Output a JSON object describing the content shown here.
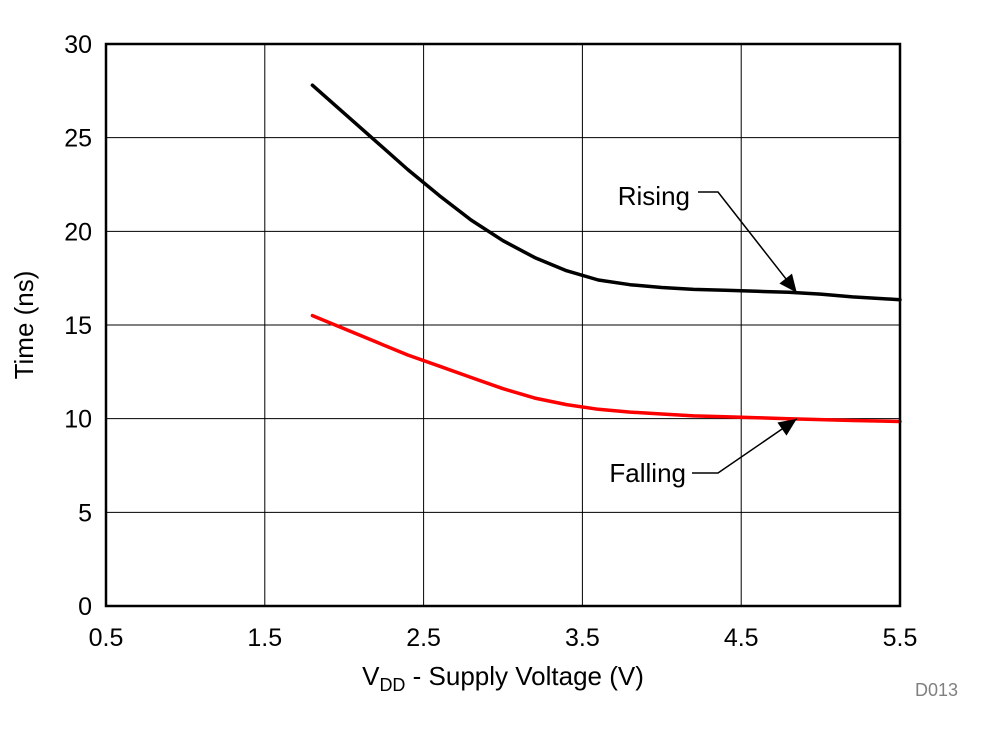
{
  "chart_data": {
    "type": "line",
    "title": "",
    "xlabel_main": "V",
    "xlabel_sub": "DD",
    "xlabel_rest": " - Supply Voltage (V)",
    "ylabel": "Time (ns)",
    "xlim": [
      0.5,
      5.5
    ],
    "ylim": [
      0,
      30
    ],
    "xticks": [
      "0.5",
      "1.5",
      "2.5",
      "3.5",
      "4.5",
      "5.5"
    ],
    "yticks": [
      "0",
      "5",
      "10",
      "15",
      "20",
      "25",
      "30"
    ],
    "grid": true,
    "series": [
      {
        "name": "Rising",
        "color": "#000000",
        "x": [
          1.8,
          2.0,
          2.2,
          2.4,
          2.6,
          2.8,
          3.0,
          3.2,
          3.4,
          3.6,
          3.8,
          4.0,
          4.2,
          4.4,
          4.6,
          4.8,
          5.0,
          5.2,
          5.5
        ],
        "y": [
          27.8,
          26.3,
          24.8,
          23.3,
          21.9,
          20.6,
          19.5,
          18.6,
          17.9,
          17.4,
          17.15,
          17.0,
          16.9,
          16.85,
          16.8,
          16.75,
          16.65,
          16.5,
          16.35
        ]
      },
      {
        "name": "Falling",
        "color": "#ff0000",
        "x": [
          1.8,
          2.0,
          2.2,
          2.4,
          2.6,
          2.8,
          3.0,
          3.2,
          3.4,
          3.6,
          3.8,
          4.0,
          4.2,
          4.4,
          4.6,
          4.8,
          5.0,
          5.2,
          5.5
        ],
        "y": [
          15.5,
          14.8,
          14.1,
          13.4,
          12.8,
          12.2,
          11.6,
          11.1,
          10.75,
          10.5,
          10.35,
          10.25,
          10.15,
          10.1,
          10.05,
          10.0,
          9.95,
          9.9,
          9.85
        ]
      }
    ],
    "annotations": [
      {
        "text": "Rising",
        "target_series": 0
      },
      {
        "text": "Falling",
        "target_series": 1
      }
    ],
    "figure_id": "D013"
  }
}
